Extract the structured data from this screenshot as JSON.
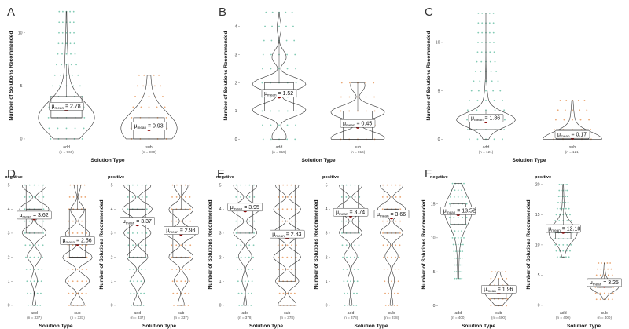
{
  "colors": {
    "add": "#1b9e77",
    "sub": "#d95f02",
    "mean": "#8b0000",
    "outline": "#333333"
  },
  "chart_data": [
    {
      "panel": "A",
      "type": "violin",
      "facet": "",
      "xlabel": "Solution Type",
      "ylabel": "Number of Solutions Recommended",
      "yticks": [
        0,
        5,
        10
      ],
      "ylim": [
        -0.3,
        12.2
      ],
      "categories": [
        "add",
        "sub"
      ],
      "counts": [
        "(n = 960)",
        "(n = 960)"
      ],
      "means": [
        2.78,
        0.93
      ],
      "medians": [
        2,
        1
      ],
      "q1": [
        2,
        0
      ],
      "q3": [
        4,
        2
      ],
      "whisker_hi": [
        7,
        5
      ],
      "ymax": [
        12,
        6
      ],
      "mean_text": [
        "2.78",
        "0.93"
      ]
    },
    {
      "panel": "B",
      "type": "violin",
      "facet": "",
      "xlabel": "Solution Type",
      "ylabel": "Number of Solutions Recommended",
      "yticks": [
        0,
        1,
        2,
        3,
        4
      ],
      "ylim": [
        -0.1,
        4.6
      ],
      "categories": [
        "add",
        "sub"
      ],
      "counts": [
        "(n = 815)",
        "(n = 816)"
      ],
      "means": [
        1.52,
        0.45
      ],
      "medians": [
        1.5,
        0.5
      ],
      "q1": [
        1,
        0
      ],
      "q3": [
        2,
        1
      ],
      "whisker_hi": [
        3.5,
        2
      ],
      "ymax": [
        4.5,
        2
      ],
      "mean_text": [
        "1.52",
        "0.45"
      ]
    },
    {
      "panel": "C",
      "type": "violin",
      "facet": "",
      "xlabel": "Solution Type",
      "ylabel": "Number of Solutions Recommended",
      "yticks": [
        0,
        5,
        10
      ],
      "ylim": [
        -0.3,
        13.4
      ],
      "categories": [
        "add",
        "sub"
      ],
      "counts": [
        "(n = 121)",
        "(n = 121)"
      ],
      "means": [
        1.86,
        0.17
      ],
      "medians": [
        2,
        0
      ],
      "q1": [
        1,
        0
      ],
      "q3": [
        2,
        1
      ],
      "whisker_hi": [
        3,
        1
      ],
      "ymax": [
        13,
        4
      ],
      "mean_text": [
        "1.86",
        "0.17"
      ]
    },
    {
      "panel": "D",
      "type": "violin",
      "facet": "negative",
      "xlabel": "Solution Type",
      "ylabel": "Number of Solutions Recommended",
      "yticks": [
        0,
        1,
        2,
        3,
        4,
        5
      ],
      "ylim": [
        -0.1,
        5.15
      ],
      "categories": [
        "add",
        "sub"
      ],
      "counts": [
        "(n = 337)",
        "(n = 337)"
      ],
      "means": [
        3.62,
        2.56
      ],
      "medians": [
        4,
        2
      ],
      "q1": [
        3,
        2
      ],
      "q3": [
        5,
        4
      ],
      "whisker_hi": [
        5,
        5
      ],
      "ymax": [
        5,
        5
      ],
      "mean_text": [
        "3.62",
        "2.56"
      ]
    },
    {
      "panel": "",
      "type": "violin",
      "facet": "positive",
      "xlabel": "Solution Type",
      "ylabel": "Number of Solutions Recommended",
      "yticks": [
        0,
        1,
        2,
        3,
        4,
        5
      ],
      "ylim": [
        -0.1,
        5.15
      ],
      "categories": [
        "add",
        "sub"
      ],
      "counts": [
        "(n = 337)",
        "(n = 337)"
      ],
      "means": [
        3.37,
        2.98
      ],
      "medians": [
        4,
        3
      ],
      "q1": [
        2,
        2
      ],
      "q3": [
        5,
        4
      ],
      "whisker_hi": [
        5,
        5
      ],
      "ymax": [
        5,
        5
      ],
      "mean_text": [
        "3.37",
        "2.98"
      ]
    },
    {
      "panel": "E",
      "type": "violin",
      "facet": "negative",
      "xlabel": "Solution Type",
      "ylabel": "Number of Solutions Recommended",
      "yticks": [
        0,
        1,
        2,
        3,
        4,
        5
      ],
      "ylim": [
        -0.1,
        5.15
      ],
      "categories": [
        "add",
        "sub"
      ],
      "counts": [
        "(n = 378)",
        "(n = 378)"
      ],
      "means": [
        3.95,
        2.83
      ],
      "medians": [
        4,
        3
      ],
      "q1": [
        3,
        1
      ],
      "q3": [
        5,
        5
      ],
      "whisker_hi": [
        5,
        5
      ],
      "ymax": [
        5,
        5
      ],
      "mean_text": [
        "3.95",
        "2.83"
      ]
    },
    {
      "panel": "",
      "type": "violin",
      "facet": "positive",
      "xlabel": "Solution Type",
      "ylabel": "Number of Solutions Recommended",
      "yticks": [
        0,
        1,
        2,
        3,
        4,
        5
      ],
      "ylim": [
        -0.1,
        5.15
      ],
      "categories": [
        "add",
        "sub"
      ],
      "counts": [
        "(n = 378)",
        "(n = 378)"
      ],
      "means": [
        3.74,
        3.66
      ],
      "medians": [
        4,
        4
      ],
      "q1": [
        3,
        3
      ],
      "q3": [
        5,
        5
      ],
      "whisker_hi": [
        5,
        5
      ],
      "ymax": [
        5,
        5
      ],
      "mean_text": [
        "3.74",
        "3.66"
      ]
    },
    {
      "panel": "F",
      "type": "violin",
      "facet": "negative",
      "xlabel": "Solution Type",
      "ylabel": "Number of Solutions Recommended",
      "yticks": [
        0,
        5,
        10,
        15
      ],
      "ylim": [
        -0.3,
        18.3
      ],
      "categories": [
        "add",
        "sub"
      ],
      "counts": [
        "(n = 400)",
        "(n = 400)"
      ],
      "means": [
        13.52,
        1.96
      ],
      "medians": [
        14,
        2
      ],
      "q1": [
        12,
        1
      ],
      "q3": [
        15,
        2.5
      ],
      "whisker_hi": [
        18,
        4
      ],
      "ymax": [
        18,
        5
      ],
      "ymin": [
        4,
        0
      ],
      "mean_text": [
        "13.52",
        "1.96"
      ]
    },
    {
      "panel": "",
      "type": "violin",
      "facet": "positive",
      "xlabel": "Solution Type",
      "ylabel": "Number of Solutions Recommended",
      "yticks": [
        0,
        5,
        10,
        15,
        20
      ],
      "ylim": [
        -0.4,
        20.5
      ],
      "categories": [
        "add",
        "sub"
      ],
      "counts": [
        "(n = 400)",
        "(n = 400)"
      ],
      "means": [
        12.18,
        3.25
      ],
      "medians": [
        12,
        3
      ],
      "q1": [
        11,
        3
      ],
      "q3": [
        13,
        4
      ],
      "whisker_hi": [
        16,
        5
      ],
      "ymax": [
        20,
        7
      ],
      "ymin": [
        8,
        1
      ],
      "mean_text": [
        "12.18",
        "3.25"
      ]
    }
  ]
}
